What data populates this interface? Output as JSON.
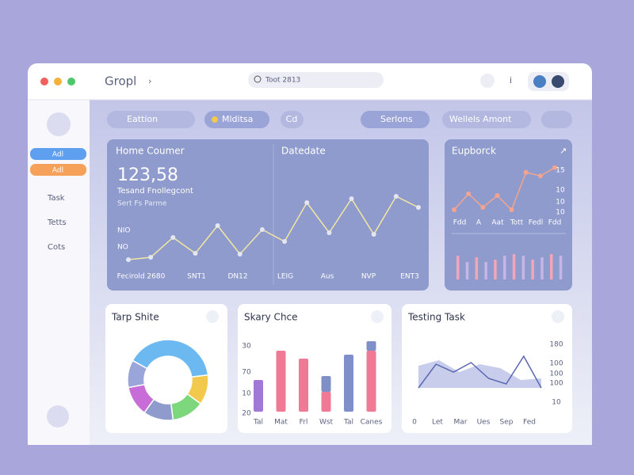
{
  "header": {
    "title": "Gropl",
    "search": "Toot 2813"
  },
  "sidebar": {
    "buttons": [
      "Adl",
      "Adl"
    ],
    "nav": [
      "Task",
      "Tetts",
      "Cots"
    ]
  },
  "toolbar": [
    "Eattion",
    "Mlditsa",
    "Cd",
    "Serlons",
    "Wellels Amont"
  ],
  "main_panel": {
    "title": "Home Coumer",
    "value": "123,58",
    "subtitle": "Tesand Fnollegcont",
    "note": "Sert Fs Parme",
    "y_labels": [
      "NIO",
      "NO"
    ],
    "section_title": "Datedate",
    "x_labels": [
      "Fecirold 2680",
      "SNT1",
      "DN12",
      "LEIG",
      "Aus",
      "NVP",
      "ENT3"
    ],
    "chart": {
      "type": "line",
      "values": [
        12,
        15,
        40,
        20,
        55,
        19,
        50,
        35,
        84,
        46,
        89,
        44,
        92,
        78
      ],
      "ylim": [
        0,
        100
      ],
      "color": "#f3e7a0"
    }
  },
  "side_panel": {
    "title": "Eupborck",
    "y_labels": [
      "15",
      "10",
      "10",
      "10"
    ],
    "x_labels": [
      "Fdd",
      "A",
      "Aat",
      "Tott",
      "Fedl",
      "Fdd"
    ],
    "line": {
      "type": "line",
      "values": [
        20,
        47,
        24,
        44,
        20,
        83,
        77,
        91
      ],
      "ylim": [
        0,
        100
      ],
      "color": "#f4a48e"
    },
    "bars": {
      "type": "bar",
      "values": [
        30,
        22,
        28,
        22,
        25,
        30,
        32,
        30,
        25,
        28,
        32,
        30
      ],
      "ylim": [
        0,
        40
      ],
      "colors": [
        "#f2a6b8",
        "#c7b5e6"
      ]
    }
  },
  "donut_card": {
    "title": "Tarp Shite",
    "chart": {
      "type": "pie",
      "values": [
        40,
        12,
        13,
        12,
        12,
        11
      ],
      "colors": [
        "#6cb8f0",
        "#f2c94c",
        "#7dd87d",
        "#8e9bcc",
        "#c86dd7",
        "#9aa5d9"
      ]
    }
  },
  "bar_card": {
    "title": "Skary Chce",
    "y_labels": [
      "30",
      "70",
      "10",
      "20"
    ],
    "categories": [
      "Tal",
      "Mat",
      "Frl",
      "Wst",
      "Tal",
      "Canes"
    ],
    "chart": {
      "type": "bar",
      "ylim": [
        0,
        90
      ],
      "series": [
        {
          "values": [
            40,
            77,
            67,
            25,
            72,
            77
          ],
          "colors": [
            "#a178d6",
            "#f07a95",
            "#f07a95",
            "#f07a95",
            "#7f8fc8",
            "#f07a95"
          ]
        },
        {
          "values": [
            0,
            0,
            0,
            20,
            0,
            12
          ],
          "color": "#7f8fc8"
        }
      ]
    }
  },
  "area_card": {
    "title": "Testing Task",
    "y_labels": [
      "180",
      "100",
      "100",
      "100",
      "10"
    ],
    "x_labels": [
      "0",
      "Let",
      "Mar",
      "Ues",
      "Sep",
      "Fed"
    ],
    "chart": {
      "type": "area",
      "ylim": [
        0,
        60
      ],
      "area": {
        "values": [
          28,
          35,
          20,
          30,
          25,
          10,
          12
        ],
        "color": "#b9c1e6"
      },
      "line": {
        "values": [
          0,
          30,
          20,
          32,
          12,
          5,
          40,
          0
        ],
        "color": "#5a67b0"
      }
    }
  }
}
